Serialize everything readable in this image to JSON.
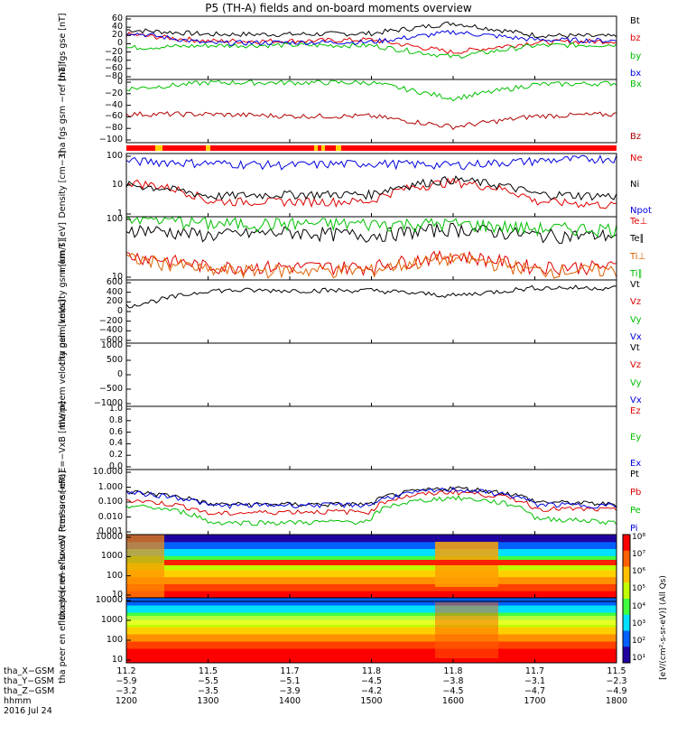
{
  "title": "P5 (TH-A) fields and on-board moments overview",
  "panels": [
    {
      "id": "fgs-gse",
      "ylabel": [
        "tha",
        "fgs",
        "gse",
        "[nT]"
      ],
      "ticks": [
        "60",
        "40",
        "20",
        "0",
        "−20",
        "−40",
        "−60",
        "−80"
      ],
      "legend": [
        {
          "label": "Bt",
          "color": "#000000"
        },
        {
          "label": "bz",
          "color": "#e00000"
        },
        {
          "label": "by",
          "color": "#00c000"
        },
        {
          "label": "bx",
          "color": "#0000e0"
        }
      ]
    },
    {
      "id": "fgs-gsm",
      "ylabel": [
        "tha",
        "fgs",
        "gsm",
        "−ref",
        "[nT]"
      ],
      "ticks": [
        "0",
        "−20",
        "−40",
        "−60",
        "−80",
        "−100"
      ],
      "legend": [
        {
          "label": "Bx",
          "color": "#00c000"
        },
        {
          "label": "Bz",
          "color": "#b00000"
        }
      ]
    },
    {
      "id": "density",
      "ylabel": [
        "Density",
        "[cm−3]"
      ],
      "ticks": [
        "100",
        "10",
        "1"
      ],
      "legend": [
        {
          "label": "Ne",
          "color": "#e00000"
        },
        {
          "label": "Ni",
          "color": "#000000"
        },
        {
          "label": "Npot",
          "color": "#0000e0"
        }
      ]
    },
    {
      "id": "temp",
      "ylabel": [
        "mom",
        "T",
        "[eV]"
      ],
      "ticks": [
        "100",
        "10"
      ],
      "legend": [
        {
          "label": "Te⊥",
          "color": "#e00000"
        },
        {
          "label": "Te∥",
          "color": "#000000"
        },
        {
          "label": "Ti⊥",
          "color": "#e06000"
        },
        {
          "label": "Ti∥",
          "color": "#00c000"
        }
      ]
    },
    {
      "id": "peim-vel",
      "ylabel": [
        "tha",
        "peim",
        "velocity",
        "gsm",
        "[km/s]"
      ],
      "ticks": [
        "600",
        "400",
        "200",
        "0",
        "−200",
        "−400",
        "−600"
      ],
      "legend": [
        {
          "label": "Vt",
          "color": "#000000"
        },
        {
          "label": "Vz",
          "color": "#e00000"
        },
        {
          "label": "Vy",
          "color": "#00c000"
        },
        {
          "label": "Vx",
          "color": "#0000e0"
        }
      ]
    },
    {
      "id": "peem-vel",
      "ylabel": [
        "tha",
        "peem",
        "velocity",
        "gsm",
        "[km/s]"
      ],
      "ticks": [
        "1000",
        "500",
        "0",
        "−500",
        "−1000"
      ],
      "legend": [
        {
          "label": "Vt",
          "color": "#000000"
        },
        {
          "label": "Vz",
          "color": "#e00000"
        },
        {
          "label": "Vy",
          "color": "#00c000"
        },
        {
          "label": "Vx",
          "color": "#0000e0"
        }
      ]
    },
    {
      "id": "efield",
      "ylabel": [
        "E=−VxB",
        "[mV/m]"
      ],
      "ticks": [
        "1.0",
        "0.8",
        "0.6",
        "0.4",
        "0.2",
        "0.0"
      ],
      "legend": [
        {
          "label": "Ez",
          "color": "#e00000"
        },
        {
          "label": "Ey",
          "color": "#00c000"
        },
        {
          "label": "Ex",
          "color": "#0000e0"
        }
      ]
    },
    {
      "id": "pressure",
      "ylabel": [
        "Pressure",
        "[nPa]"
      ],
      "ticks": [
        "10.000",
        "1.000",
        "0.100",
        "0.010",
        "0.001"
      ],
      "legend": [
        {
          "label": "Pt",
          "color": "#000000"
        },
        {
          "label": "Pb",
          "color": "#e00000"
        },
        {
          "label": "Pe",
          "color": "#00c000"
        },
        {
          "label": "Pi",
          "color": "#0000e0"
        }
      ]
    },
    {
      "id": "peir",
      "ylabel": [
        "tha",
        "peir",
        "en",
        "eflux",
        "eV",
        "(cm²-s-",
        "sr-eV)"
      ],
      "ticks": [
        "10000",
        "1000",
        "100",
        "10"
      ],
      "legend": []
    },
    {
      "id": "peer",
      "ylabel": [
        "tha",
        "peer",
        "en",
        "eflux",
        "eV",
        "(cm²-s-",
        "sr-eV)"
      ],
      "ticks": [
        "10000",
        "1000",
        "100",
        "10"
      ],
      "legend": []
    }
  ],
  "colorbar": {
    "ticks": [
      "10⁸",
      "10⁷",
      "10⁶",
      "10⁵",
      "10⁴",
      "10³",
      "10²",
      "10¹"
    ],
    "label": "[eV/(cm²-s-sr-eV)] (All Qs)"
  },
  "x_axis": {
    "rows": [
      {
        "label": "tha_X−GSM",
        "values": [
          "11.2",
          "11.5",
          "11.7",
          "11.8",
          "11.8",
          "11.7",
          "11.5"
        ]
      },
      {
        "label": "tha_Y−GSM",
        "values": [
          "−5.9",
          "−5.5",
          "−5.1",
          "−4.5",
          "−3.8",
          "−3.1",
          "−2.3"
        ]
      },
      {
        "label": "tha_Z−GSM",
        "values": [
          "−3.2",
          "−3.5",
          "−3.9",
          "−4.2",
          "−4.5",
          "−4.7",
          "−4.9"
        ]
      },
      {
        "label": "hhmm",
        "values": [
          "1200",
          "1300",
          "1400",
          "1500",
          "1600",
          "1700",
          "1800"
        ]
      }
    ],
    "date": "2016 Jul 24"
  },
  "chart_data": {
    "type": "line",
    "x": [
      "1200",
      "1300",
      "1400",
      "1500",
      "1600",
      "1700",
      "1800"
    ],
    "xlabel": "hhmm",
    "series": [
      {
        "name": "Bt",
        "panel": "fgs-gse",
        "values": [
          30,
          20,
          20,
          22,
          45,
          18,
          15
        ]
      },
      {
        "name": "bz",
        "panel": "fgs-gse",
        "values": [
          20,
          5,
          5,
          8,
          -20,
          2,
          5
        ]
      },
      {
        "name": "by",
        "panel": "fgs-gse",
        "values": [
          -10,
          -5,
          -4,
          -5,
          -30,
          -5,
          -3
        ]
      },
      {
        "name": "bx",
        "panel": "fgs-gse",
        "values": [
          25,
          0,
          2,
          3,
          25,
          8,
          6
        ]
      },
      {
        "name": "Bx",
        "panel": "fgs-gsm",
        "values": [
          -15,
          -5,
          -5,
          -5,
          -30,
          -8,
          -6
        ]
      },
      {
        "name": "Bz",
        "panel": "fgs-gsm",
        "values": [
          -55,
          -55,
          -58,
          -58,
          -75,
          -58,
          -55
        ]
      },
      {
        "name": "Ne",
        "panel": "density",
        "values": [
          20,
          3,
          3,
          3,
          20,
          3,
          2
        ]
      },
      {
        "name": "Ni",
        "panel": "density",
        "values": [
          15,
          5,
          6,
          6,
          25,
          6,
          5
        ]
      },
      {
        "name": "Npot",
        "panel": "density",
        "values": [
          150,
          120,
          100,
          120,
          100,
          150,
          200
        ]
      },
      {
        "name": "Te⊥",
        "panel": "temp",
        "values": [
          30,
          15,
          15,
          15,
          30,
          15,
          15
        ]
      },
      {
        "name": "Te∥",
        "panel": "temp",
        "values": [
          150,
          100,
          120,
          100,
          150,
          100,
          100
        ]
      },
      {
        "name": "Ti⊥",
        "panel": "temp",
        "values": [
          25,
          12,
          12,
          12,
          25,
          12,
          12
        ]
      },
      {
        "name": "Ti∥",
        "panel": "temp",
        "values": [
          300,
          200,
          200,
          200,
          200,
          150,
          150
        ]
      },
      {
        "name": "Vt",
        "panel": "peim-vel",
        "values": [
          100,
          400,
          400,
          400,
          300,
          450,
          450
        ]
      },
      {
        "name": "Pt",
        "panel": "pressure",
        "values": [
          0.8,
          0.1,
          0.1,
          0.1,
          1.5,
          0.15,
          0.1
        ]
      },
      {
        "name": "Pb",
        "panel": "pressure",
        "values": [
          0.2,
          0.02,
          0.03,
          0.03,
          0.8,
          0.05,
          0.04
        ]
      },
      {
        "name": "Pe",
        "panel": "pressure",
        "values": [
          0.08,
          0.005,
          0.005,
          0.006,
          0.3,
          0.01,
          0.005
        ]
      },
      {
        "name": "Pi",
        "panel": "pressure",
        "values": [
          0.7,
          0.08,
          0.09,
          0.09,
          1.2,
          0.1,
          0.08
        ]
      }
    ]
  }
}
